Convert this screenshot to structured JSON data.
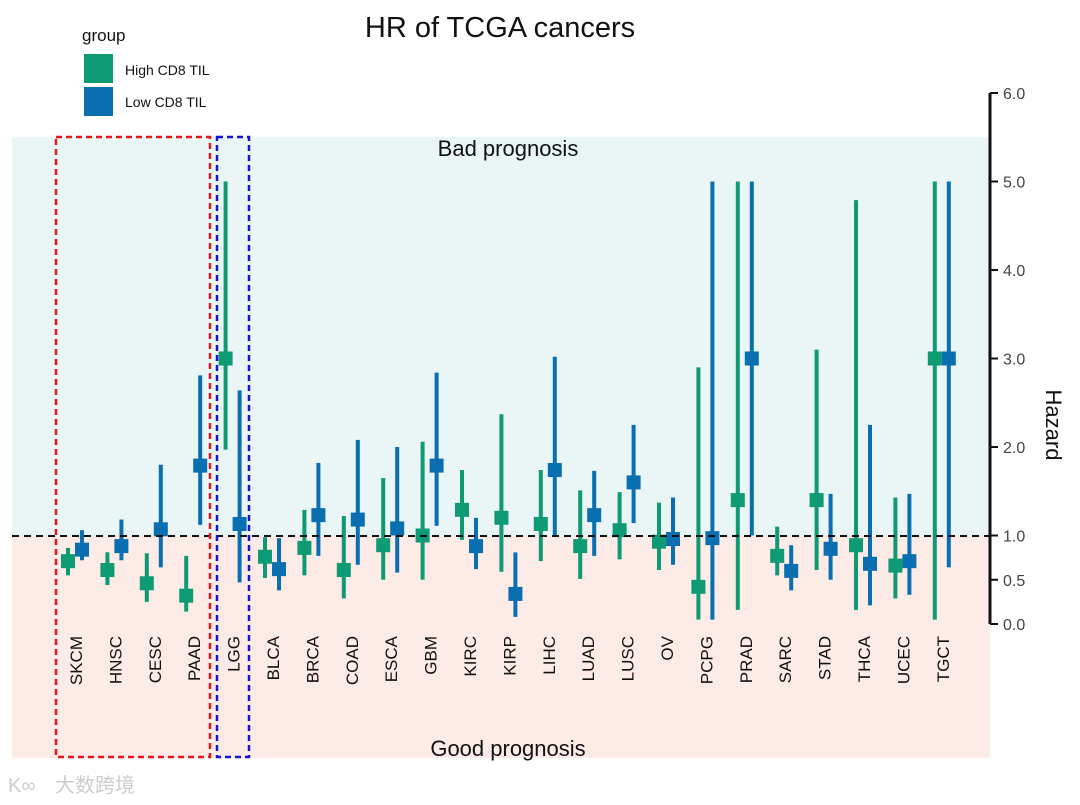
{
  "chart_data": {
    "type": "errorbar",
    "title": "HR of TCGA cancers",
    "ylabel": "Hazard",
    "ylim": [
      0,
      6
    ],
    "yticks": [
      0.0,
      0.5,
      1.0,
      2.0,
      3.0,
      4.0,
      5.0,
      6.0
    ],
    "ytick_labels": [
      "0.0",
      "0.5",
      "1.0",
      "2.0",
      "3.0",
      "4.0",
      "5.0",
      "6.0"
    ],
    "reference_line": 1.0,
    "legend": {
      "title": "group",
      "placement": "top-left"
    },
    "regions": {
      "upper": "Bad prognosis",
      "lower": "Good prognosis"
    },
    "categories": [
      "SKCM",
      "HNSC",
      "CESC",
      "PAAD",
      "LGG",
      "BLCA",
      "BRCA",
      "COAD",
      "ESCA",
      "GBM",
      "KIRC",
      "KIRP",
      "LIHC",
      "LUAD",
      "LUSC",
      "OV",
      "PCPG",
      "PRAD",
      "SARC",
      "STAD",
      "THCA",
      "UCEC",
      "TGCT"
    ],
    "highlight_boxes": [
      {
        "categories": [
          "SKCM",
          "HNSC",
          "CESC",
          "PAAD"
        ],
        "color": "#e8141c"
      },
      {
        "categories": [
          "LGG"
        ],
        "color": "#1414d8"
      }
    ],
    "series": [
      {
        "name": "High CD8 TIL",
        "color": "#0e9a72",
        "hr": [
          0.71,
          0.61,
          0.46,
          0.32,
          3.0,
          0.76,
          0.86,
          0.61,
          0.89,
          1.0,
          1.29,
          1.2,
          1.13,
          0.88,
          1.06,
          0.93,
          0.42,
          1.4,
          0.77,
          1.4,
          0.89,
          0.66,
          3.0
        ],
        "low": [
          0.55,
          0.44,
          0.25,
          0.14,
          1.97,
          0.52,
          0.55,
          0.29,
          0.5,
          0.5,
          0.95,
          0.59,
          0.71,
          0.51,
          0.73,
          0.61,
          0.05,
          0.16,
          0.55,
          0.61,
          0.16,
          0.29,
          0.05
        ],
        "high": [
          0.86,
          0.81,
          0.8,
          0.77,
          5.0,
          0.98,
          1.29,
          1.22,
          1.65,
          2.06,
          1.74,
          2.37,
          1.74,
          1.51,
          1.49,
          1.37,
          2.9,
          5.0,
          1.1,
          3.1,
          4.79,
          1.43,
          5.0
        ]
      },
      {
        "name": "Low CD8 TIL",
        "color": "#0a6fb0",
        "hr": [
          0.84,
          0.88,
          1.07,
          1.79,
          1.13,
          0.62,
          1.23,
          1.18,
          1.08,
          1.79,
          0.88,
          0.34,
          1.74,
          1.23,
          1.6,
          0.96,
          0.97,
          3.0,
          0.6,
          0.85,
          0.68,
          0.71,
          3.0
        ],
        "low": [
          0.72,
          0.72,
          0.64,
          1.12,
          0.47,
          0.38,
          0.77,
          0.67,
          0.58,
          1.11,
          0.62,
          0.08,
          1.0,
          0.77,
          1.14,
          0.67,
          0.05,
          1.0,
          0.38,
          0.5,
          0.21,
          0.33,
          0.64
        ],
        "high": [
          1.06,
          1.18,
          1.8,
          2.81,
          2.64,
          0.97,
          1.82,
          2.08,
          2.0,
          2.84,
          1.2,
          0.81,
          3.02,
          1.73,
          2.25,
          1.43,
          5.0,
          5.0,
          0.89,
          1.47,
          2.25,
          1.47,
          5.0
        ]
      }
    ]
  },
  "watermark": "大数跨境"
}
